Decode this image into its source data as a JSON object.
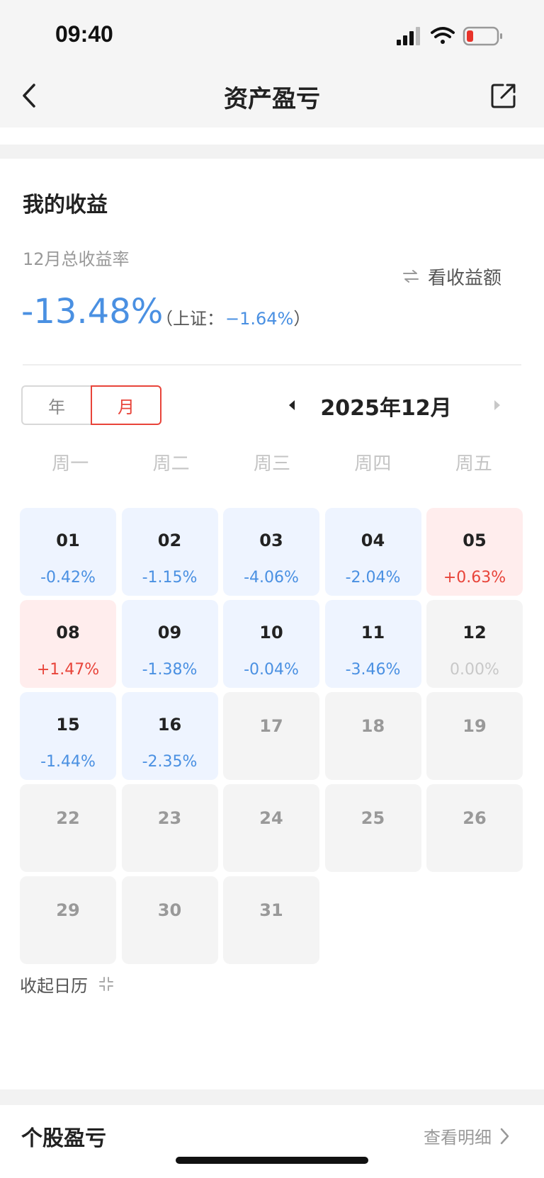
{
  "status": {
    "time": "09:40"
  },
  "nav": {
    "title": "资产盈亏"
  },
  "earnings": {
    "section_title": "我的收益",
    "rate_label": "12月总收益率",
    "toggle_label": "看收益额",
    "total_rate": "-13.48%",
    "bench_open": "（上证：",
    "bench_value": "−1.64%",
    "bench_close": "）"
  },
  "period": {
    "year_label": "年",
    "month_label": "月",
    "selected": "月",
    "current": "2025年12月"
  },
  "weekdays": [
    "周一",
    "周二",
    "周三",
    "周四",
    "周五"
  ],
  "days": [
    {
      "day": "01",
      "pct": "-0.42%",
      "state": "neg"
    },
    {
      "day": "02",
      "pct": "-1.15%",
      "state": "neg"
    },
    {
      "day": "03",
      "pct": "-4.06%",
      "state": "neg"
    },
    {
      "day": "04",
      "pct": "-2.04%",
      "state": "neg"
    },
    {
      "day": "05",
      "pct": "+0.63%",
      "state": "pos"
    },
    {
      "day": "08",
      "pct": "+1.47%",
      "state": "pos"
    },
    {
      "day": "09",
      "pct": "-1.38%",
      "state": "neg"
    },
    {
      "day": "10",
      "pct": "-0.04%",
      "state": "neg"
    },
    {
      "day": "11",
      "pct": "-3.46%",
      "state": "neg"
    },
    {
      "day": "12",
      "pct": "0.00%",
      "state": "zero"
    },
    {
      "day": "15",
      "pct": "-1.44%",
      "state": "neg"
    },
    {
      "day": "16",
      "pct": "-2.35%",
      "state": "neg"
    },
    {
      "day": "17",
      "pct": "",
      "state": "empty"
    },
    {
      "day": "18",
      "pct": "",
      "state": "empty"
    },
    {
      "day": "19",
      "pct": "",
      "state": "empty"
    },
    {
      "day": "22",
      "pct": "",
      "state": "empty"
    },
    {
      "day": "23",
      "pct": "",
      "state": "empty"
    },
    {
      "day": "24",
      "pct": "",
      "state": "empty"
    },
    {
      "day": "25",
      "pct": "",
      "state": "empty"
    },
    {
      "day": "26",
      "pct": "",
      "state": "empty"
    },
    {
      "day": "29",
      "pct": "",
      "state": "empty"
    },
    {
      "day": "30",
      "pct": "",
      "state": "empty"
    },
    {
      "day": "31",
      "pct": "",
      "state": "empty"
    }
  ],
  "collapse_label": "收起日历",
  "stocks": {
    "title": "个股盈亏",
    "more_label": "查看明细"
  },
  "colors": {
    "negative": "#4a90e2",
    "positive": "#e8443a",
    "accent": "#e8443a"
  },
  "icons": [
    "back-icon",
    "share-icon",
    "swap-icon",
    "caret-left-icon",
    "caret-right-icon",
    "collapse-icon",
    "chevron-right-icon",
    "signal-icon",
    "wifi-icon",
    "battery-icon"
  ]
}
